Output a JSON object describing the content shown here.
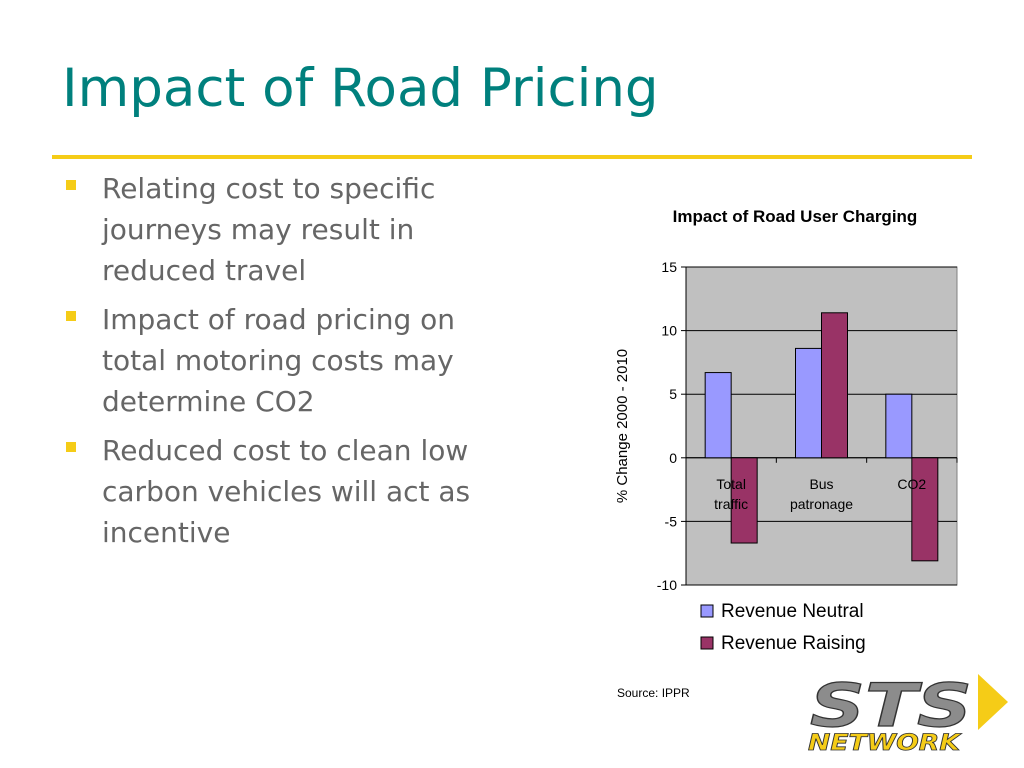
{
  "slide": {
    "title": "Impact of Road Pricing",
    "bullets": [
      "Relating cost to specific journeys may result in reduced travel",
      "Impact of road pricing on total motoring costs may determine CO2",
      "Reduced cost to clean low carbon vehicles will act as incentive"
    ],
    "source": "Source: IPPR"
  },
  "logo": {
    "text_main": "STS",
    "text_sub": "NETWORK"
  },
  "colors": {
    "title": "#00807d",
    "rule": "#f5cc17",
    "bullet_text": "#666666",
    "plot_bg": "#c0c0c0",
    "revenue_neutral": "#9999ff",
    "revenue_raising": "#993366"
  },
  "chart_data": {
    "type": "bar",
    "title": "Impact of Road User Charging",
    "ylabel": "% Change 2000 - 2010",
    "xlabel": "",
    "categories": [
      [
        "Total",
        "traffic"
      ],
      [
        "Bus",
        "patronage"
      ],
      [
        "CO2"
      ]
    ],
    "series": [
      {
        "name": "Revenue Neutral",
        "values": [
          6.7,
          8.6,
          5.0
        ],
        "color": "#9999ff"
      },
      {
        "name": "Revenue Raising",
        "values": [
          -6.7,
          11.4,
          -8.1
        ],
        "color": "#993366"
      }
    ],
    "ylim": [
      -10,
      15
    ],
    "yticks": [
      15,
      10,
      5,
      0,
      -5,
      -10
    ],
    "grid": true,
    "legend": "bottom"
  }
}
